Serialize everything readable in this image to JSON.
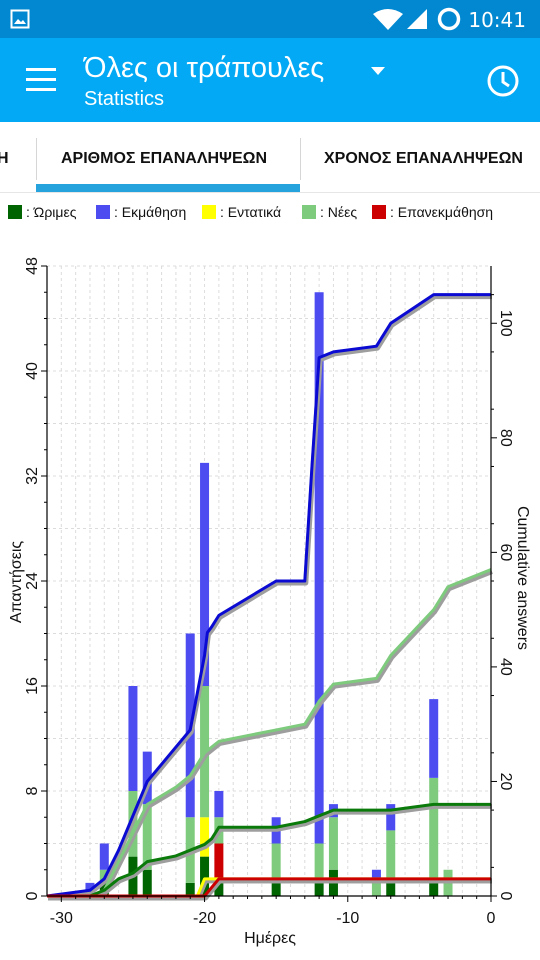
{
  "status_bar": {
    "time": "10:41"
  },
  "toolbar": {
    "title": "Όλες οι τράπουλες",
    "subtitle": "Statistics"
  },
  "tabs": [
    {
      "label": "Η"
    },
    {
      "label": "ΑΡΙΘΜΟΣ ΕΠΑΝΑΛΗΨΕΩΝ",
      "active": true
    },
    {
      "label": "ΧΡΟΝΟΣ ΕΠΑΝΑΛΗΨΕΩΝ"
    }
  ],
  "colors": {
    "statusbar": "#0288d1",
    "toolbar": "#03a9f4",
    "tab_indicator": "#26a3dc"
  },
  "legend": [
    {
      "label": ": Ώριμες",
      "color": "#006400"
    },
    {
      "label": ": Εκμάθηση",
      "color": "#4c4cf0"
    },
    {
      "label": ": Εντατικά",
      "color": "#ffff00"
    },
    {
      "label": ": Νέες",
      "color": "#7ecb7e"
    },
    {
      "label": ": Επανεκμάθηση",
      "color": "#cc0000"
    }
  ],
  "chart_data": {
    "type": "bar",
    "xlabel": "Ημέρες",
    "ylabel": "Απαντήσεις",
    "y2label": "Cumulative answers",
    "xlim": [
      -31,
      0
    ],
    "ylim": [
      0,
      48
    ],
    "y2lim": [
      0,
      110
    ],
    "xticks": [
      -30,
      -20,
      -10,
      0
    ],
    "yticks": [
      0,
      8,
      16,
      24,
      32,
      40,
      48
    ],
    "y2ticks": [
      0,
      20,
      40,
      60,
      80,
      100
    ],
    "grid": true,
    "bars": [
      {
        "x": -28,
        "mature": 0,
        "learn": 1,
        "relearn": 0,
        "young": 0,
        "new": 0
      },
      {
        "x": -27,
        "mature": 1,
        "learn": 2,
        "relearn": 0,
        "young": 0,
        "new": 1
      },
      {
        "x": -25,
        "mature": 3,
        "learn": 8,
        "relearn": 0,
        "young": 0,
        "new": 5
      },
      {
        "x": -24,
        "mature": 2,
        "learn": 4,
        "relearn": 0,
        "young": 0,
        "new": 5
      },
      {
        "x": -21,
        "mature": 1,
        "learn": 14,
        "relearn": 0,
        "young": 0,
        "new": 5
      },
      {
        "x": -20,
        "mature": 3,
        "learn": 17,
        "relearn": 0,
        "young": 3,
        "new": 10
      },
      {
        "x": -19,
        "mature": 1,
        "learn": 2,
        "relearn": 3,
        "young": 0,
        "new": 2
      },
      {
        "x": -15,
        "mature": 1,
        "learn": 2,
        "relearn": 0,
        "young": 0,
        "new": 3
      },
      {
        "x": -12,
        "mature": 1,
        "learn": 42,
        "relearn": 0,
        "young": 0,
        "new": 3
      },
      {
        "x": -11,
        "mature": 2,
        "learn": 1,
        "relearn": 0,
        "young": 0,
        "new": 4
      },
      {
        "x": -8,
        "mature": 0,
        "learn": 1,
        "relearn": 0,
        "young": 0,
        "new": 1
      },
      {
        "x": -7,
        "mature": 1,
        "learn": 2,
        "relearn": 0,
        "young": 0,
        "new": 4
      },
      {
        "x": -4,
        "mature": 1,
        "learn": 6,
        "relearn": 0,
        "young": 0,
        "new": 8
      },
      {
        "x": -3,
        "mature": 0,
        "learn": 0,
        "relearn": 0,
        "young": 0,
        "new": 2
      }
    ],
    "series": [
      {
        "key": "learn",
        "color": "#0a0ad2",
        "x": [
          -31,
          -28,
          -27,
          -26,
          -25,
          -24,
          -22,
          -21,
          -20,
          -19.8,
          -19.5,
          -19,
          -15,
          -13,
          -12.5,
          -12,
          -11,
          -8,
          -7,
          -4,
          0
        ],
        "values": [
          0,
          1,
          3,
          8,
          14,
          20,
          26,
          29,
          42,
          46,
          47,
          49,
          55,
          55,
          75,
          94,
          95,
          96,
          100,
          105,
          105
        ]
      },
      {
        "key": "new",
        "color": "#7ecb7e",
        "x": [
          -31,
          -28,
          -27,
          -26,
          -25,
          -24,
          -22,
          -21,
          -20,
          -19.5,
          -19,
          -15,
          -13,
          -12,
          -11,
          -8,
          -7,
          -4,
          -3,
          0
        ],
        "values": [
          0,
          0,
          1,
          6,
          11,
          16,
          19,
          21,
          25,
          26,
          27,
          29,
          30,
          34,
          37,
          38,
          42,
          50,
          54,
          57
        ]
      },
      {
        "key": "mature",
        "color": "#0a7a0a",
        "x": [
          -31,
          -28,
          -27,
          -26,
          -25,
          -24,
          -22,
          -21,
          -20,
          -19.5,
          -19,
          -15,
          -13,
          -12,
          -11,
          -8,
          -7,
          -4,
          0
        ],
        "values": [
          0,
          0,
          1,
          3,
          4,
          6,
          7,
          8,
          9,
          10,
          12,
          12,
          13,
          14,
          15,
          15,
          15,
          16,
          16
        ]
      },
      {
        "key": "young",
        "color": "#ffff00",
        "x": [
          -31,
          -20.5,
          -20,
          0
        ],
        "values": [
          0,
          0,
          3,
          3
        ]
      },
      {
        "key": "relearn",
        "color": "#cc0000",
        "x": [
          -31,
          -20,
          -19,
          0
        ],
        "values": [
          0,
          0,
          3,
          3
        ]
      }
    ]
  }
}
